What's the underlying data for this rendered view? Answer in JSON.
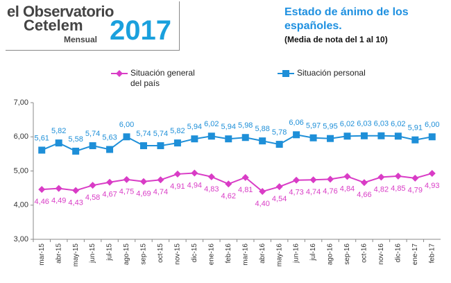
{
  "logo": {
    "line1": "el Observatorio",
    "line2": "Cetelem",
    "year": "2017",
    "edition": "Mensual"
  },
  "chart_data": {
    "type": "line",
    "title": "Estado de ánimo de los españoles.",
    "subtitle": "(Media de nota del 1 al 10)",
    "categories": [
      "mar-15",
      "abr-15",
      "may-15",
      "jun-15",
      "jul-15",
      "ago-15",
      "sep-15",
      "oct-15",
      "nov-15",
      "dic-15",
      "ene-16",
      "feb-16",
      "mar-16",
      "abr-16",
      "may-16",
      "jun-16",
      "jul-16",
      "ago-16",
      "sep-16",
      "oct-16",
      "nov-16",
      "dic-16",
      "ene-17",
      "feb-17"
    ],
    "series": [
      {
        "name": "Situación general del país",
        "color": "#d93cc6",
        "marker": "diamond",
        "label_side": "below",
        "values": [
          4.46,
          4.49,
          4.43,
          4.58,
          4.67,
          4.75,
          4.69,
          4.74,
          4.91,
          4.94,
          4.83,
          4.62,
          4.81,
          4.4,
          4.54,
          4.73,
          4.74,
          4.76,
          4.84,
          4.66,
          4.82,
          4.85,
          4.79,
          4.93
        ],
        "value_labels": [
          "4,46",
          "4,49",
          "4,43",
          "4,58",
          "4,67",
          "4,75",
          "4,69",
          "4,74",
          "4,91",
          "4,94",
          "4,83",
          "4,62",
          "4,81",
          "4,40",
          "4,54",
          "4,73",
          "4,74",
          "4,76",
          "4,84",
          "4,66",
          "4,82",
          "4,85",
          "4,79",
          "4,93"
        ]
      },
      {
        "name": "Situación personal",
        "color": "#1e8fd8",
        "marker": "square",
        "label_side": "above",
        "values": [
          5.61,
          5.82,
          5.58,
          5.74,
          5.63,
          6.0,
          5.74,
          5.74,
          5.82,
          5.94,
          6.02,
          5.94,
          5.98,
          5.88,
          5.78,
          6.06,
          5.97,
          5.95,
          6.02,
          6.03,
          6.03,
          6.02,
          5.91,
          6.0
        ],
        "value_labels": [
          "5,61",
          "5,82",
          "5,58",
          "5,74",
          "5,63",
          "6,00",
          "5,74",
          "5,74",
          "5,82",
          "5,94",
          "6,02",
          "5,94",
          "5,98",
          "5,88",
          "5,78",
          "6,06",
          "5,97",
          "5,95",
          "6,02",
          "6,03",
          "6,03",
          "6,02",
          "5,91",
          "6,00"
        ]
      }
    ],
    "ylim": [
      3,
      7
    ],
    "yticks": [
      {
        "value": 3,
        "label": "3,00"
      },
      {
        "value": 4,
        "label": "4,00"
      },
      {
        "value": 5,
        "label": "5,00"
      },
      {
        "value": 6,
        "label": "6,00"
      },
      {
        "value": 7,
        "label": "7,00"
      }
    ],
    "grid": false
  }
}
